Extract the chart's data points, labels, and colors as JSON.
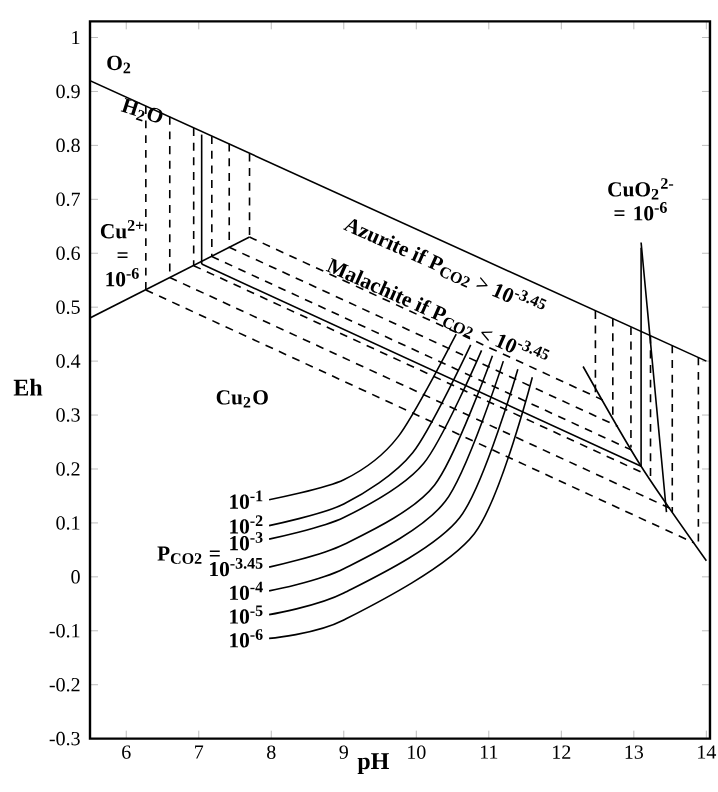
{
  "chart_data": {
    "type": "line",
    "xlabel": "pH",
    "ylabel": "Eh",
    "xlim": [
      5.5,
      14.05
    ],
    "ylim": [
      -0.3,
      1.03
    ],
    "xticks": [
      6,
      7,
      8,
      9,
      10,
      11,
      12,
      13,
      14
    ],
    "yticks": [
      -0.3,
      -0.2,
      -0.1,
      0,
      0.1,
      0.2,
      0.3,
      0.4,
      0.5,
      0.6,
      0.7,
      0.8,
      0.9,
      1
    ],
    "marker": "none",
    "series": [
      {
        "color": "#000000",
        "line_style": "solid",
        "x": [
          5.5,
          14
        ],
        "values": [
          0.92,
          0.4
        ]
      },
      {
        "color": "#000000",
        "line_style": "solid",
        "x": [
          5.5,
          7.7
        ],
        "values": [
          0.48,
          0.63
        ]
      },
      {
        "color": "#000000",
        "line_style": "solid",
        "x": [
          7.04,
          7.04
        ],
        "values": [
          0.82,
          0.58
        ]
      },
      {
        "color": "#000000",
        "line_style": "solid",
        "x": [
          7.04,
          13.1
        ],
        "values": [
          0.58,
          0.205
        ]
      },
      {
        "color": "#000000",
        "line_style": "solid",
        "x": [
          13.1,
          13.1
        ],
        "values": [
          0.61,
          0.205
        ]
      },
      {
        "color": "#000000",
        "line_style": "solid",
        "x": [
          12.3,
          13.1,
          14
        ],
        "values": [
          0.39,
          0.205,
          0.03
        ]
      },
      {
        "color": "#000000",
        "line_style": "dashed",
        "x": [
          6.27,
          6.27
        ],
        "values": [
          0.873,
          0.532
        ]
      },
      {
        "color": "#000000",
        "line_style": "dashed",
        "x": [
          6.6,
          6.6
        ],
        "values": [
          0.853,
          0.555
        ]
      },
      {
        "color": "#000000",
        "line_style": "dashed",
        "x": [
          6.93,
          6.93
        ],
        "values": [
          0.832,
          0.577
        ]
      },
      {
        "color": "#000000",
        "line_style": "dashed",
        "x": [
          7.18,
          7.18
        ],
        "values": [
          0.817,
          0.594
        ]
      },
      {
        "color": "#000000",
        "line_style": "dashed",
        "x": [
          7.42,
          7.42
        ],
        "values": [
          0.803,
          0.611
        ]
      },
      {
        "color": "#000000",
        "line_style": "dashed",
        "x": [
          7.7,
          7.7
        ],
        "values": [
          0.785,
          0.63
        ]
      },
      {
        "color": "#000000",
        "line_style": "dashed",
        "x": [
          7.7,
          12.57
        ],
        "values": [
          0.63,
          0.328
        ]
      },
      {
        "color": "#000000",
        "line_style": "dashed",
        "x": [
          7.42,
          12.78
        ],
        "values": [
          0.611,
          0.279
        ]
      },
      {
        "color": "#000000",
        "line_style": "dashed",
        "x": [
          7.18,
          12.97
        ],
        "values": [
          0.594,
          0.235
        ]
      },
      {
        "color": "#000000",
        "line_style": "dashed",
        "x": [
          6.93,
          13.17
        ],
        "values": [
          0.577,
          0.19
        ]
      },
      {
        "color": "#000000",
        "line_style": "dashed",
        "x": [
          6.6,
          13.5
        ],
        "values": [
          0.555,
          0.127
        ]
      },
      {
        "color": "#000000",
        "line_style": "dashed",
        "x": [
          6.27,
          13.83
        ],
        "values": [
          0.532,
          0.063
        ]
      },
      {
        "color": "#000000",
        "line_style": "dashed",
        "x": [
          12.47,
          12.47
        ],
        "values": [
          0.493,
          0.34
        ]
      },
      {
        "color": "#000000",
        "line_style": "dashed",
        "x": [
          12.71,
          12.71
        ],
        "values": [
          0.479,
          0.3
        ]
      },
      {
        "color": "#000000",
        "line_style": "dashed",
        "x": [
          12.96,
          12.96
        ],
        "values": [
          0.463,
          0.24
        ]
      },
      {
        "color": "#000000",
        "line_style": "dashed",
        "x": [
          13.23,
          13.23
        ],
        "values": [
          0.447,
          0.18
        ]
      },
      {
        "color": "#000000",
        "line_style": "dashed",
        "x": [
          13.53,
          13.53
        ],
        "values": [
          0.429,
          0.12
        ]
      },
      {
        "color": "#000000",
        "line_style": "dashed",
        "x": [
          13.89,
          13.89
        ],
        "values": [
          0.407,
          0.06
        ]
      },
      {
        "color": "#000000",
        "line_style": "solid",
        "x": [
          13.45,
          13.1
        ],
        "values": [
          0.12,
          0.62
        ]
      },
      {
        "color": "#000000",
        "line_style": "solid",
        "x": [
          7.97,
          9.0,
          9.75,
          10.55
        ],
        "values": [
          0.143,
          0.18,
          0.26,
          0.45
        ]
      },
      {
        "color": "#000000",
        "line_style": "solid",
        "x": [
          7.97,
          9.0,
          9.95,
          10.75
        ],
        "values": [
          0.095,
          0.135,
          0.23,
          0.43
        ]
      },
      {
        "color": "#000000",
        "line_style": "solid",
        "x": [
          7.97,
          9.0,
          10.1,
          10.9
        ],
        "values": [
          0.07,
          0.11,
          0.21,
          0.42
        ]
      },
      {
        "color": "#000000",
        "line_style": "solid",
        "x": [
          7.97,
          9.0,
          10.25,
          11.05
        ],
        "values": [
          0.018,
          0.06,
          0.17,
          0.41
        ]
      },
      {
        "color": "#000000",
        "line_style": "solid",
        "x": [
          7.97,
          9.0,
          10.4,
          11.2
        ],
        "values": [
          -0.026,
          0.015,
          0.14,
          0.4
        ]
      },
      {
        "color": "#000000",
        "line_style": "solid",
        "x": [
          7.97,
          9.0,
          10.6,
          11.4
        ],
        "values": [
          -0.07,
          -0.03,
          0.11,
          0.385
        ]
      },
      {
        "color": "#000000",
        "line_style": "solid",
        "x": [
          7.97,
          9.0,
          10.8,
          11.6
        ],
        "values": [
          -0.114,
          -0.08,
          0.08,
          0.37
        ]
      }
    ],
    "annotations": [
      "O$_{2}$",
      "H$_{2}$O",
      "Cu$^{2+}$ = 10$^{-6}$",
      "Azurite if P$_{CO2}$ > 10$^{-3.45}$",
      "Malachite if P$_{CO2}$ < 10$^{-3.45}$",
      "Cu$_{2}$O",
      "CuO$_{2}$$^{2-}$ = 10$^{-6}$",
      "P$_{CO2}$ =",
      "10$^{-1}$",
      "10$^{-2}$",
      "10$^{-3}$",
      "10$^{-3.45}$",
      "10$^{-4}$",
      "10$^{-5}$",
      "10$^{-6}$"
    ]
  }
}
